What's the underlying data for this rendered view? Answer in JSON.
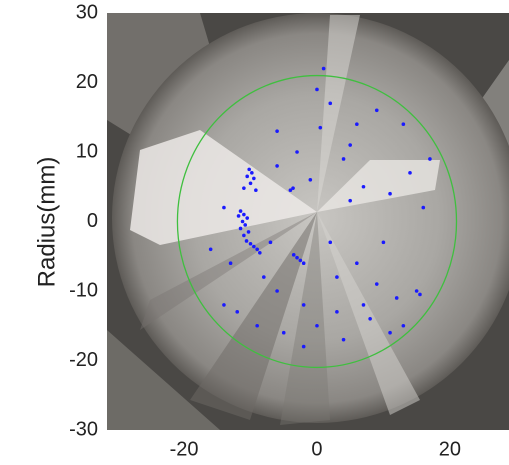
{
  "chart_data": {
    "type": "scatter",
    "y_label": "Radius(mm)",
    "x": [
      -10.2,
      -9.8,
      -10.5,
      -9.5,
      -10,
      -11,
      -9.2,
      -11.5,
      -11,
      -10.5,
      -11.2,
      -10.8,
      -11.5,
      -10.3,
      -11,
      -10.6,
      -10,
      -9.5,
      -9,
      -8.6,
      -11.8,
      -3.5,
      -3,
      -2.5,
      -2,
      -4,
      -3.6,
      1,
      2,
      -6,
      0.5,
      6,
      9,
      13,
      17,
      14,
      4,
      7,
      11,
      -3,
      -6,
      5,
      -14,
      -16,
      -13,
      -8,
      -6,
      -2,
      3,
      6,
      9,
      12,
      15,
      15.5,
      13,
      8,
      4,
      0,
      -5,
      -9,
      -12,
      -2,
      10,
      16,
      0,
      -14,
      7,
      11,
      3,
      -7,
      2,
      5,
      -1
    ],
    "values": [
      7.5,
      7,
      6.5,
      6.2,
      5.5,
      4.8,
      4.5,
      1.5,
      1,
      0.5,
      0,
      -0.5,
      -1,
      -1.5,
      -2,
      -2.8,
      -3.2,
      -3.6,
      -4,
      -4.5,
      0.8,
      -4.8,
      -5.2,
      -5.6,
      -6,
      4.5,
      4.8,
      22,
      17,
      13,
      13.5,
      14,
      16,
      14,
      9,
      7,
      9,
      5,
      4,
      10,
      8,
      3,
      2,
      -4,
      -6,
      -8,
      -10,
      -12,
      -8,
      -6,
      -9,
      -11,
      -10,
      -10.5,
      -15,
      -14,
      -17,
      -15,
      -16,
      -15,
      -13,
      -18,
      -3,
      2,
      19,
      -12,
      -12,
      -16,
      -13,
      -3,
      -3,
      11,
      6
    ],
    "color": "#1a1aff",
    "xlim": [
      -31.6,
      28.9
    ],
    "ylim": [
      -30,
      30
    ],
    "xticks": [
      -20,
      0,
      20
    ],
    "yticks": [
      30,
      20,
      10,
      0,
      -10,
      -20,
      -30
    ],
    "reference_circle": {
      "radius": 21,
      "color": "#3fbf3f"
    }
  }
}
